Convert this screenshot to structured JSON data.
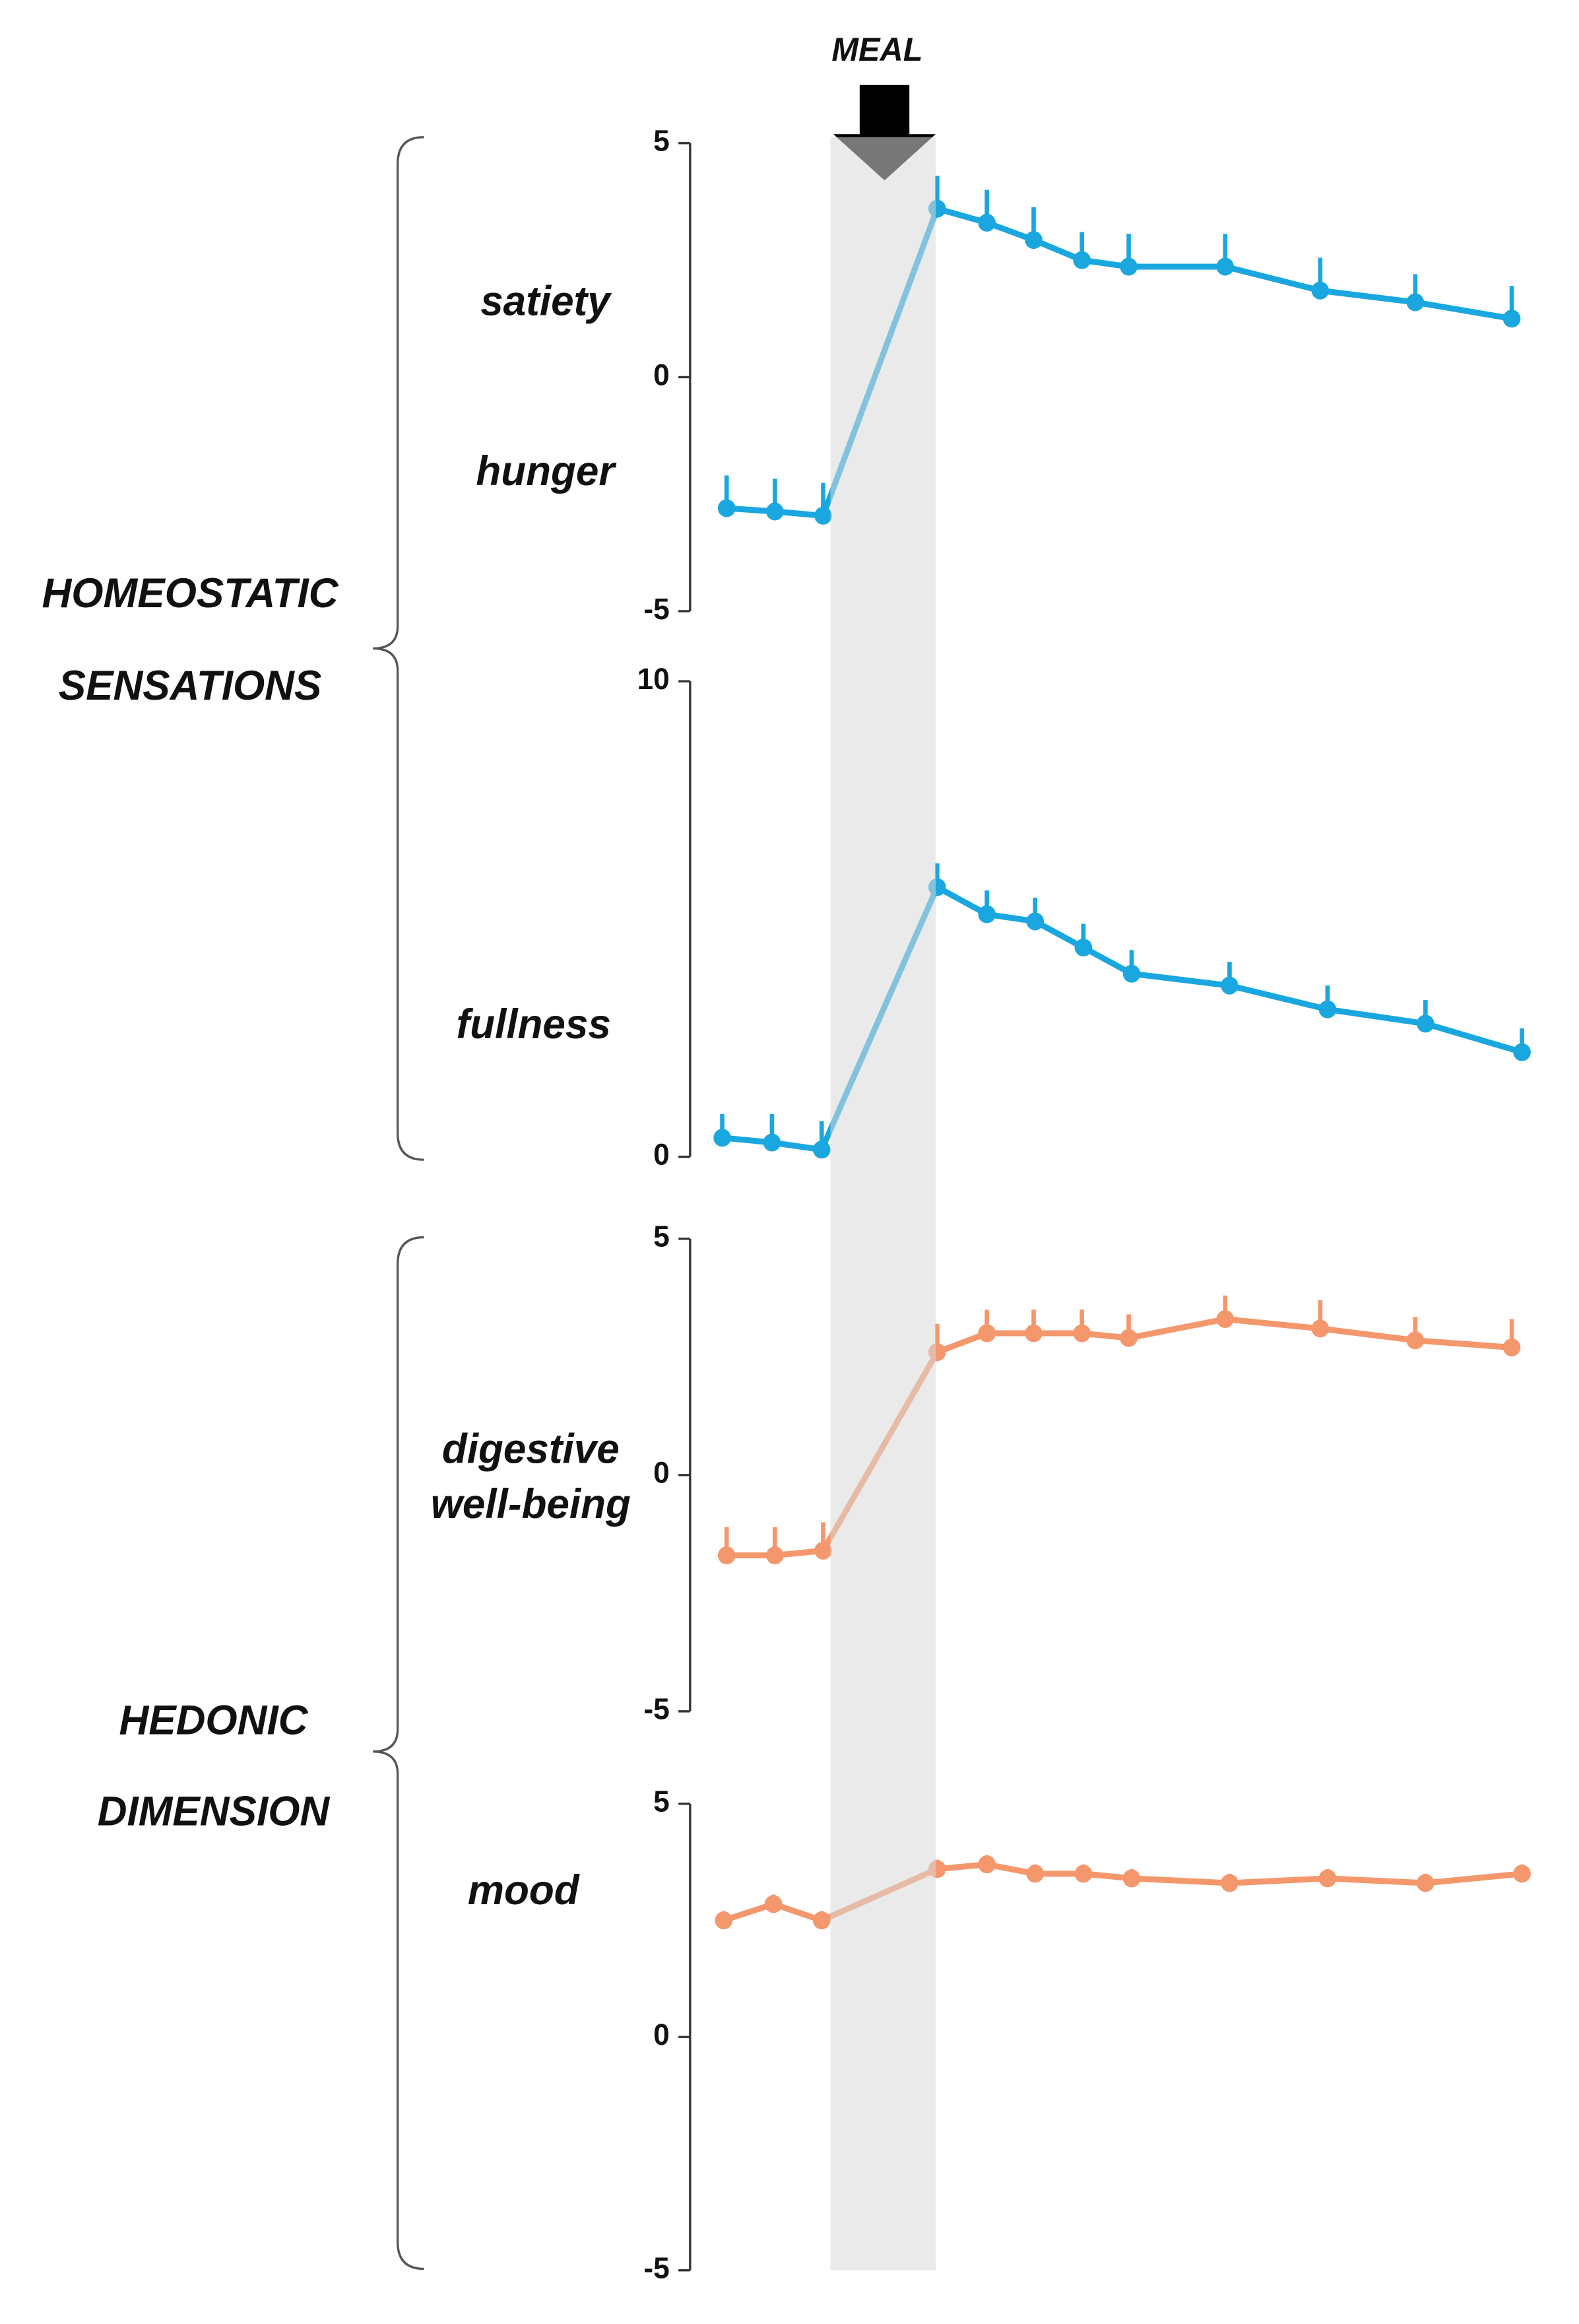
{
  "meal_label": "MEAL",
  "groups": [
    {
      "lines": [
        "HOMEOSTATIC",
        "SENSATIONS"
      ]
    },
    {
      "lines": [
        "HEDONIC",
        "DIMENSION"
      ]
    }
  ],
  "chart_data": [
    {
      "type": "line",
      "labels": [
        "satiety",
        "hunger"
      ],
      "color": "#1aa7e0",
      "categories": [
        null,
        null,
        null,
        null,
        null,
        null,
        null,
        null,
        null,
        null,
        null,
        null
      ],
      "values": [
        -2.8,
        -2.87,
        -2.96,
        3.6,
        3.3,
        2.93,
        2.5,
        2.36,
        2.36,
        1.85,
        1.6,
        1.25
      ],
      "errors": [
        0.7,
        0.7,
        0.7,
        0.7,
        0.7,
        0.7,
        0.6,
        0.7,
        0.7,
        0.7,
        0.6,
        0.7
      ],
      "ylim": [
        -5,
        5
      ],
      "yticks": [
        -5,
        0,
        5
      ]
    },
    {
      "type": "line",
      "labels": [
        "fullness"
      ],
      "color": "#1aa7e0",
      "categories": [
        null,
        null,
        null,
        null,
        null,
        null,
        null,
        null,
        null,
        null,
        null,
        null
      ],
      "values": [
        0.4,
        0.3,
        0.15,
        5.67,
        5.1,
        4.95,
        4.4,
        3.85,
        3.6,
        3.1,
        2.8,
        2.2
      ],
      "errors": [
        0.5,
        0.6,
        0.6,
        0.5,
        0.5,
        0.5,
        0.5,
        0.5,
        0.5,
        0.5,
        0.5,
        0.5
      ],
      "ylim": [
        0,
        10
      ],
      "yticks": [
        0,
        10
      ]
    },
    {
      "type": "line",
      "labels": [
        "digestive",
        "well-being"
      ],
      "color": "#f4976c",
      "categories": [
        null,
        null,
        null,
        null,
        null,
        null,
        null,
        null,
        null,
        null,
        null,
        null
      ],
      "values": [
        -1.7,
        -1.7,
        -1.6,
        2.6,
        3.0,
        3.0,
        3.0,
        2.9,
        3.3,
        3.1,
        2.85,
        2.7
      ],
      "errors": [
        0.6,
        0.6,
        0.6,
        0.6,
        0.5,
        0.5,
        0.5,
        0.5,
        0.5,
        0.6,
        0.5,
        0.6
      ],
      "ylim": [
        -5,
        5
      ],
      "yticks": [
        -5,
        0,
        5
      ]
    },
    {
      "type": "line",
      "labels": [
        "mood"
      ],
      "color": "#f4976c",
      "categories": [
        null,
        null,
        null,
        null,
        null,
        null,
        null,
        null,
        null,
        null,
        null,
        null
      ],
      "values": [
        2.5,
        2.85,
        2.5,
        3.6,
        3.7,
        3.5,
        3.5,
        3.4,
        3.3,
        3.4,
        3.3,
        3.5
      ],
      "errors": [
        0.2,
        0.2,
        0.2,
        0.2,
        0.2,
        0.2,
        0.2,
        0.2,
        0.2,
        0.2,
        0.2,
        0.2
      ],
      "ylim": [
        -5,
        5
      ],
      "yticks": [
        -5,
        0,
        5
      ]
    }
  ]
}
